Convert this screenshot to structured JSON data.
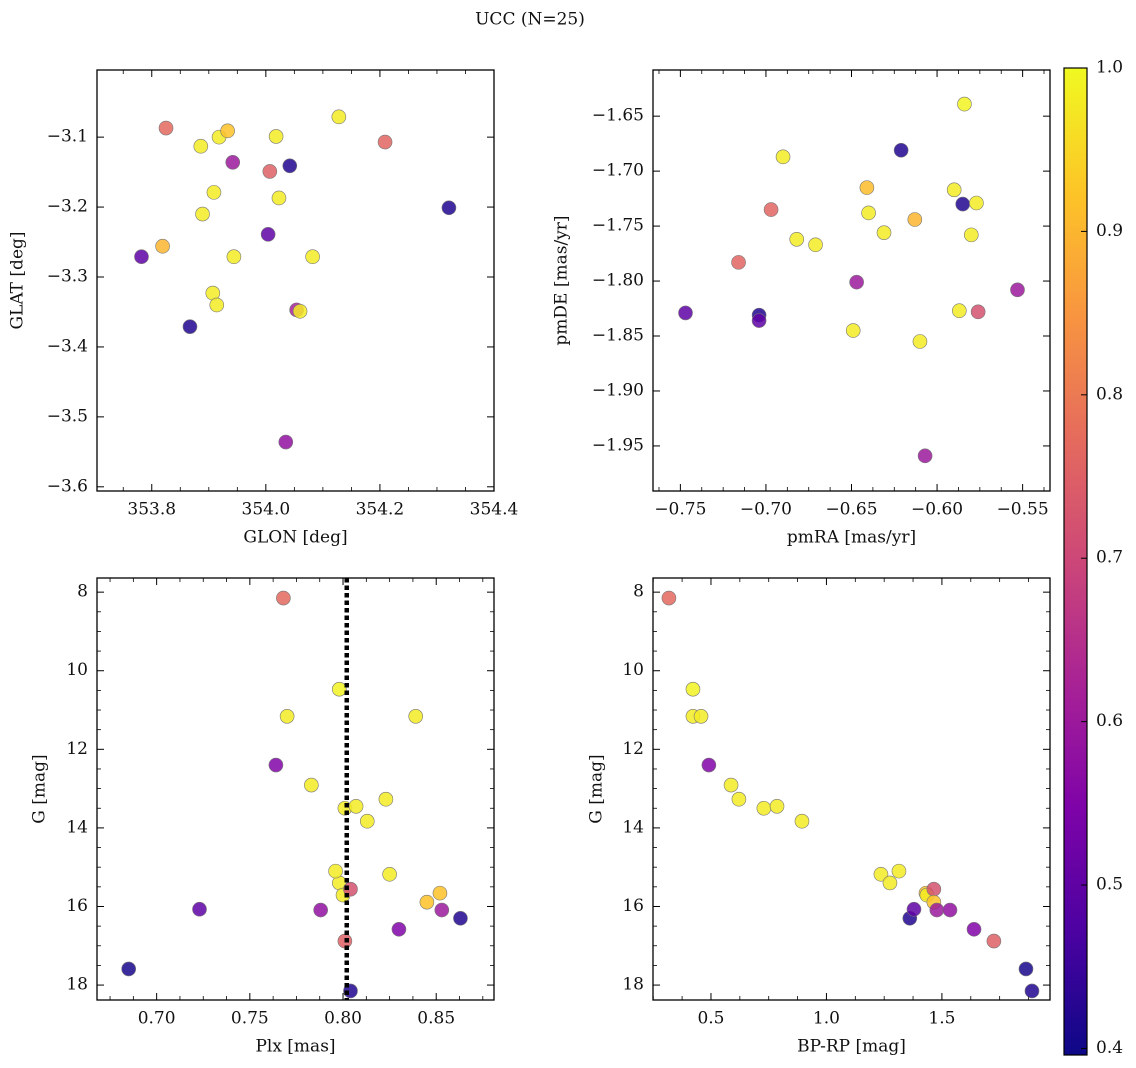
{
  "title": "UCC (N=25)",
  "colorbar": {
    "cmap": "plasma",
    "clim": [
      0.396,
      1.0
    ],
    "ticks": [
      0.4,
      0.5,
      0.6,
      0.7,
      0.8,
      0.9,
      {
        "value": 1.0,
        "label": "1.0"
      }
    ]
  },
  "chart_data": [
    {
      "type": "scatter",
      "xlabel": "GLON [deg]",
      "ylabel": "GLAT [deg]",
      "x": [
        353.825,
        353.886,
        353.918,
        353.933,
        353.942,
        354.018,
        354.007,
        354.042,
        354.128,
        354.209,
        354.321,
        353.909,
        353.889,
        354.023,
        354.004,
        353.782,
        353.819,
        353.944,
        354.082,
        353.907,
        353.914,
        354.054,
        354.06,
        353.867,
        354.035
      ],
      "y": [
        -3.087,
        -3.113,
        -3.1,
        -3.091,
        -3.136,
        -3.099,
        -3.149,
        -3.141,
        -3.071,
        -3.107,
        -3.201,
        -3.179,
        -3.21,
        -3.187,
        -3.239,
        -3.271,
        -3.256,
        -3.271,
        -3.271,
        -3.323,
        -3.34,
        -3.347,
        -3.349,
        -3.371,
        -3.536
      ],
      "c": [
        0.77,
        0.98,
        0.98,
        0.92,
        0.6,
        0.98,
        0.75,
        0.42,
        0.98,
        0.76,
        0.42,
        0.98,
        0.98,
        0.98,
        0.5,
        0.5,
        0.9,
        0.98,
        0.98,
        0.98,
        0.98,
        0.62,
        0.98,
        0.42,
        0.58
      ],
      "xlim": [
        353.704,
        354.4
      ],
      "ylim": [
        -3.606,
        -3.004
      ],
      "xticks": [
        353.8,
        {
          "value": 354.0,
          "label": "354.0"
        },
        354.2,
        354.4
      ],
      "yticks": [
        {
          "value": -3.1,
          "label": "−3.1"
        },
        {
          "value": -3.2,
          "label": "−3.2"
        },
        {
          "value": -3.3,
          "label": "−3.3"
        },
        {
          "value": -3.4,
          "label": "−3.4"
        },
        {
          "value": -3.5,
          "label": "−3.5"
        },
        {
          "value": -3.6,
          "label": "−3.6"
        }
      ]
    },
    {
      "type": "scatter",
      "xlabel": "pmRA [mas/yr]",
      "ylabel": "pmDE [mas/yr]",
      "x": [
        -0.584,
        -0.621,
        -0.69,
        -0.697,
        -0.641,
        -0.59,
        -0.585,
        -0.577,
        -0.64,
        -0.613,
        -0.631,
        -0.58,
        -0.682,
        -0.671,
        -0.716,
        -0.647,
        -0.553,
        -0.747,
        -0.587,
        -0.576,
        -0.704,
        -0.704,
        -0.649,
        -0.61,
        -0.607
      ],
      "y": [
        -1.639,
        -1.681,
        -1.687,
        -1.735,
        -1.715,
        -1.717,
        -1.73,
        -1.729,
        -1.738,
        -1.744,
        -1.756,
        -1.758,
        -1.762,
        -1.767,
        -1.783,
        -1.801,
        -1.808,
        -1.829,
        -1.827,
        -1.828,
        -1.831,
        -1.836,
        -1.845,
        -1.855,
        -1.959
      ],
      "c": [
        0.99,
        0.42,
        0.98,
        0.76,
        0.91,
        0.98,
        0.42,
        0.98,
        0.98,
        0.9,
        0.98,
        0.98,
        0.98,
        0.98,
        0.76,
        0.6,
        0.6,
        0.5,
        0.98,
        0.72,
        0.42,
        0.5,
        0.98,
        0.98,
        0.6
      ],
      "xlim": [
        -0.766,
        -0.534
      ],
      "ylim": [
        -1.991,
        -1.608
      ],
      "xticks": [
        {
          "value": -0.75,
          "label": "−0.75"
        },
        {
          "value": -0.7,
          "label": "−0.70"
        },
        {
          "value": -0.65,
          "label": "−0.65"
        },
        {
          "value": -0.6,
          "label": "−0.60"
        },
        {
          "value": -0.55,
          "label": "−0.55"
        }
      ],
      "yticks": [
        {
          "value": -1.65,
          "label": "−1.65"
        },
        {
          "value": -1.7,
          "label": "−1.70"
        },
        {
          "value": -1.75,
          "label": "−1.75"
        },
        {
          "value": -1.8,
          "label": "−1.80"
        },
        {
          "value": -1.85,
          "label": "−1.85"
        },
        {
          "value": -1.9,
          "label": "−1.90"
        },
        {
          "value": -1.95,
          "label": "−1.95"
        }
      ]
    },
    {
      "type": "scatter",
      "xlabel": "Plx [mas]",
      "ylabel": "G [mag]",
      "x": [
        0.768,
        0.798,
        0.77,
        0.839,
        0.764,
        0.783,
        0.823,
        0.801,
        0.807,
        0.813,
        0.825,
        0.798,
        0.796,
        0.852,
        0.8,
        0.804,
        0.845,
        0.853,
        0.863,
        0.723,
        0.788,
        0.83,
        0.801,
        0.685,
        0.804
      ],
      "y": [
        8.15,
        10.47,
        11.16,
        11.16,
        12.4,
        12.91,
        13.27,
        13.5,
        13.45,
        13.83,
        15.18,
        15.4,
        15.1,
        15.66,
        15.71,
        15.56,
        15.89,
        16.09,
        16.3,
        16.07,
        16.09,
        16.58,
        16.88,
        17.59,
        18.15
      ],
      "c": [
        0.77,
        0.99,
        0.98,
        0.98,
        0.55,
        0.98,
        0.98,
        0.98,
        0.98,
        0.98,
        0.98,
        0.98,
        0.98,
        0.92,
        0.98,
        0.72,
        0.92,
        0.6,
        0.42,
        0.5,
        0.58,
        0.55,
        0.75,
        0.41,
        0.42
      ],
      "vline": 0.802,
      "xlim": [
        0.668,
        0.881
      ],
      "ylim": [
        18.38,
        7.64
      ],
      "xticks": [
        {
          "value": 0.7,
          "label": "0.70"
        },
        0.75,
        {
          "value": 0.8,
          "label": "0.80"
        },
        0.85
      ],
      "yticks": [
        8,
        10,
        12,
        14,
        16,
        18
      ]
    },
    {
      "type": "scatter",
      "xlabel": "BP-RP [mag]",
      "ylabel": "G [mag]",
      "x": [
        0.318,
        0.422,
        0.422,
        0.457,
        0.491,
        0.587,
        0.621,
        0.729,
        0.786,
        0.894,
        1.236,
        1.275,
        1.314,
        1.431,
        1.435,
        1.465,
        1.465,
        1.478,
        1.361,
        1.379,
        1.535,
        1.639,
        1.725,
        1.864,
        1.89
      ],
      "y": [
        8.15,
        10.47,
        11.16,
        11.16,
        12.4,
        12.91,
        13.27,
        13.5,
        13.45,
        13.83,
        15.18,
        15.4,
        15.1,
        15.66,
        15.71,
        15.56,
        15.89,
        16.09,
        16.3,
        16.07,
        16.09,
        16.58,
        16.88,
        17.59,
        18.15
      ],
      "c": [
        0.77,
        0.99,
        0.98,
        0.98,
        0.55,
        0.98,
        0.98,
        0.98,
        0.98,
        0.98,
        0.98,
        0.98,
        0.98,
        0.92,
        0.98,
        0.72,
        0.92,
        0.6,
        0.42,
        0.5,
        0.58,
        0.55,
        0.75,
        0.41,
        0.42
      ],
      "xlim": [
        0.249,
        1.968
      ],
      "ylim": [
        18.38,
        7.64
      ],
      "xticks": [
        0.5,
        {
          "value": 1.0,
          "label": "1.0"
        },
        1.5
      ],
      "yticks": [
        8,
        10,
        12,
        14,
        16,
        18
      ]
    }
  ]
}
